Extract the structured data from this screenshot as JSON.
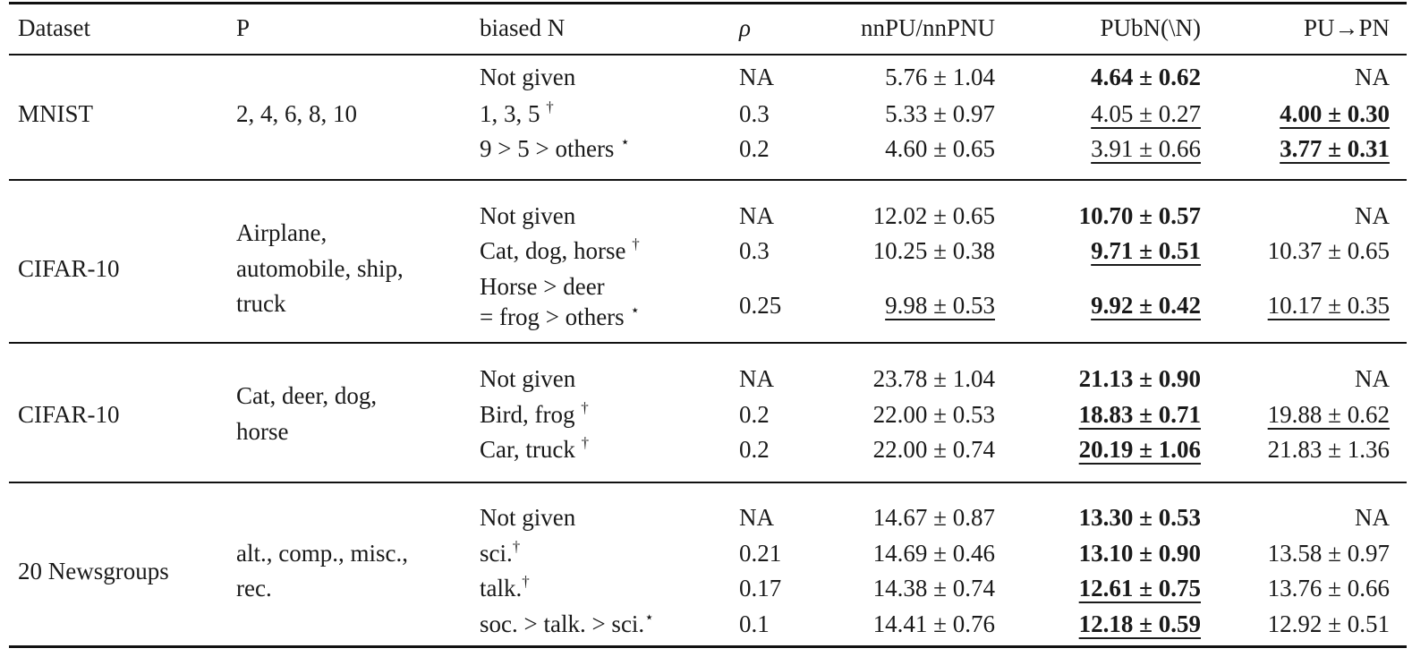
{
  "header": {
    "dataset": "Dataset",
    "p": "P",
    "biased_n": "biased N",
    "rho": "ρ",
    "nnpu": "nnPU/nnPNU",
    "pubn": "PUbN(\\N)",
    "pu_pn": "PU→PN"
  },
  "groups": [
    {
      "dataset": "MNIST",
      "p": "2, 4, 6, 8, 10",
      "rows": [
        {
          "biased_n": "Not given",
          "sup": "",
          "rho": "NA",
          "nnpu": "5.76 ± 1.04",
          "pubn": "4.64 ± 0.62",
          "pu_pn": "NA"
        },
        {
          "biased_n": "1, 3, 5 ",
          "sup": "†",
          "rho": "0.3",
          "nnpu": "5.33 ± 0.97",
          "pubn": "4.05 ± 0.27",
          "pu_pn": "4.00 ± 0.30"
        },
        {
          "biased_n": "9 > 5 > others ",
          "sup": "⋆",
          "rho": "0.2",
          "nnpu": "4.60 ± 0.65",
          "pubn": "3.91 ± 0.66",
          "pu_pn": "3.77 ± 0.31"
        }
      ]
    },
    {
      "dataset": "CIFAR-10",
      "p_lines": [
        "Airplane,",
        "automobile, ship,",
        "truck"
      ],
      "rows": [
        {
          "biased_n": "Not given",
          "sup": "",
          "rho": "NA",
          "nnpu": "12.02 ± 0.65",
          "pubn": "10.70 ± 0.57",
          "pu_pn": "NA"
        },
        {
          "biased_n": "Cat, dog, horse ",
          "sup": "†",
          "rho": "0.3",
          "nnpu": "10.25 ± 0.38",
          "pubn": "9.71 ± 0.51",
          "pu_pn": "10.37 ± 0.65"
        },
        {
          "biased_n_lines": [
            "Horse > deer",
            "= frog > others "
          ],
          "sup": "⋆",
          "rho": "0.25",
          "nnpu": "9.98 ± 0.53",
          "pubn": "9.92 ± 0.42",
          "pu_pn": "10.17 ± 0.35"
        }
      ]
    },
    {
      "dataset": "CIFAR-10",
      "p_lines": [
        "Cat, deer, dog,",
        "horse"
      ],
      "rows": [
        {
          "biased_n": "Not given",
          "sup": "",
          "rho": "NA",
          "nnpu": "23.78 ± 1.04",
          "pubn": "21.13 ± 0.90",
          "pu_pn": "NA"
        },
        {
          "biased_n": "Bird, frog ",
          "sup": "†",
          "rho": "0.2",
          "nnpu": "22.00 ± 0.53",
          "pubn": "18.83 ± 0.71",
          "pu_pn": "19.88 ± 0.62"
        },
        {
          "biased_n": "Car, truck ",
          "sup": "†",
          "rho": "0.2",
          "nnpu": "22.00 ± 0.74",
          "pubn": "20.19 ± 1.06",
          "pu_pn": "21.83 ± 1.36"
        }
      ]
    },
    {
      "dataset": "20 Newsgroups",
      "p_lines": [
        "alt., comp., misc.,",
        "rec."
      ],
      "rows": [
        {
          "biased_n": "Not given",
          "sup": "",
          "rho": "NA",
          "nnpu": "14.67 ± 0.87",
          "pubn": "13.30 ± 0.53",
          "pu_pn": "NA"
        },
        {
          "biased_n": "sci.",
          "sup": "†",
          "rho": "0.21",
          "nnpu": "14.69 ± 0.46",
          "pubn": "13.10 ± 0.90",
          "pu_pn": "13.58 ± 0.97"
        },
        {
          "biased_n": "talk.",
          "sup": "†",
          "rho": "0.17",
          "nnpu": "14.38 ± 0.74",
          "pubn": "12.61 ± 0.75",
          "pu_pn": "13.76 ± 0.66"
        },
        {
          "biased_n": "soc. > talk. > sci.",
          "sup": "⋆",
          "rho": "0.1",
          "nnpu": "14.41 ± 0.76",
          "pubn": "12.18 ± 0.59",
          "pu_pn": "12.92 ± 0.51"
        }
      ]
    }
  ]
}
